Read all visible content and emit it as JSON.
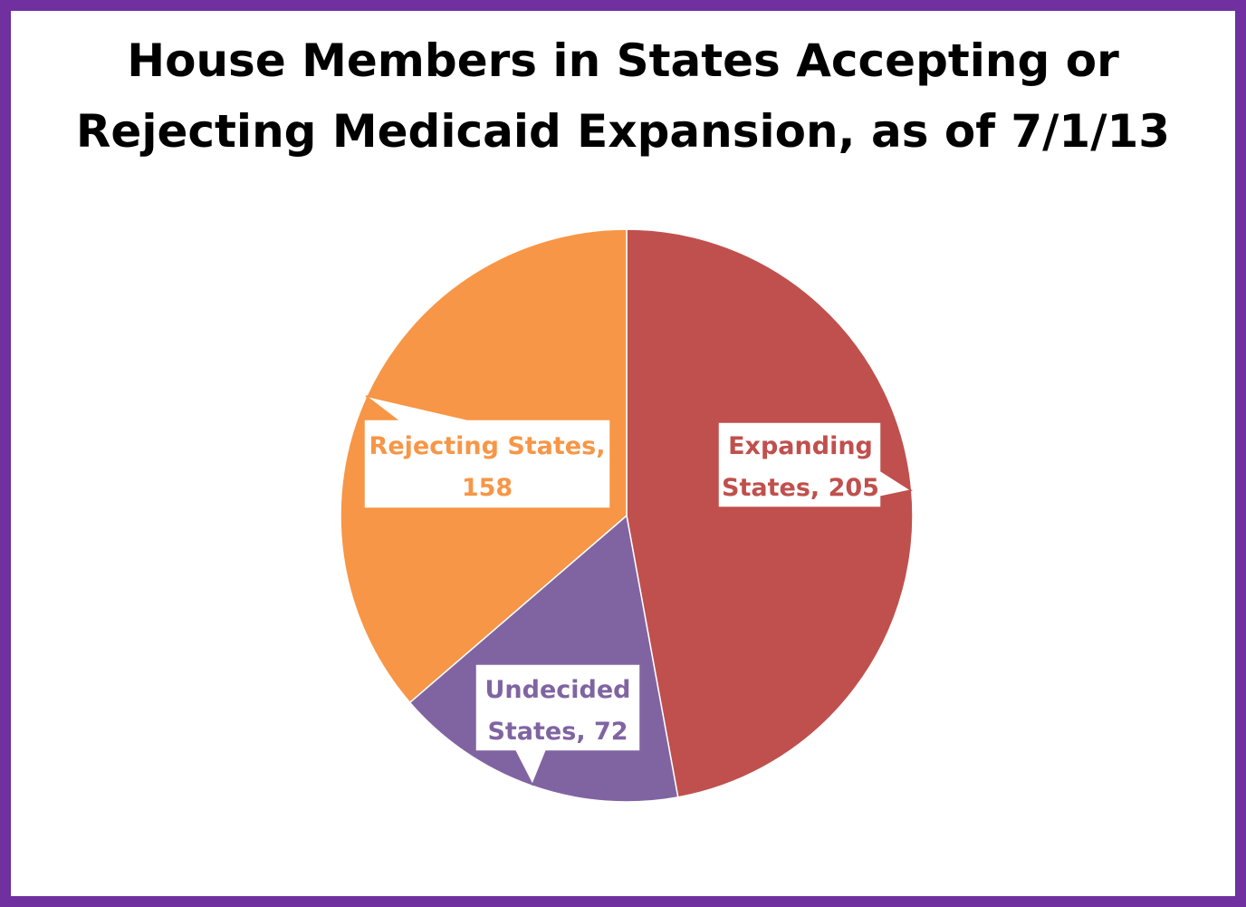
{
  "chart_data": {
    "type": "pie",
    "title_lines": [
      "House Members in States Accepting or",
      "Rejecting Medicaid Expansion, as of 7/1/13"
    ],
    "slices": [
      {
        "name": "Expanding States",
        "value": 205,
        "color": "#c0504d",
        "label_lines": [
          "Expanding",
          "States, 205"
        ]
      },
      {
        "name": "Undecided States",
        "value": 72,
        "color": "#8064a2",
        "label_lines": [
          "Undecided",
          "States, 72"
        ]
      },
      {
        "name": "Rejecting States",
        "value": 158,
        "color": "#f79646",
        "label_lines": [
          "Rejecting States,",
          "158"
        ]
      }
    ],
    "start_angle": "12-o'clock",
    "direction": "clockwise",
    "legend": "none"
  },
  "colors": {
    "frame": "#7030a0",
    "background": "#ffffff"
  }
}
